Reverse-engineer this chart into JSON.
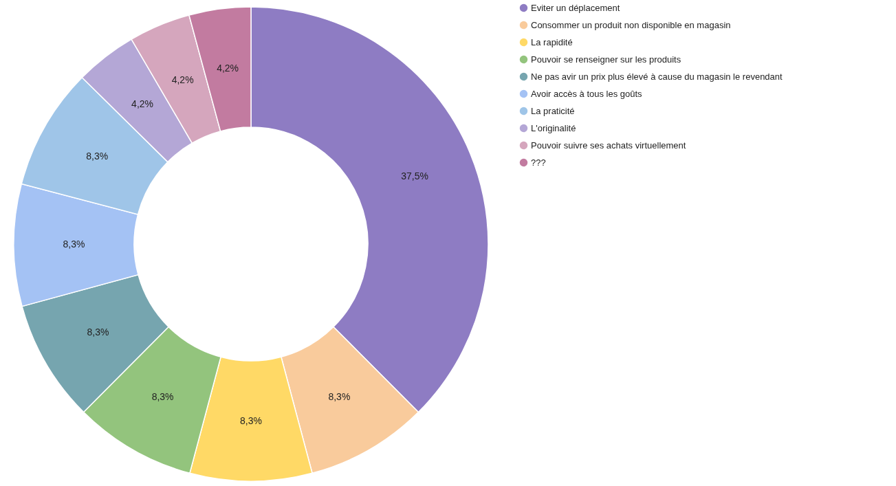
{
  "chart_data": {
    "type": "donut",
    "categories": [
      "Eviter un déplacement",
      "Consommer un produit non disponible en magasin",
      "La rapidité",
      "Pouvoir se renseigner sur les produits",
      "Ne pas avir un prix plus élevé à cause du magasin le revendant",
      "Avoir accès à tous les goûts",
      "La praticité",
      "L'originalité",
      "Pouvoir suivre ses achats virtuellement",
      "???"
    ],
    "values": [
      37.5,
      8.3,
      8.3,
      8.3,
      8.3,
      8.3,
      8.3,
      4.2,
      4.2,
      4.2
    ],
    "value_labels": [
      "37,5%",
      "8,3%",
      "8,3%",
      "8,3%",
      "8,3%",
      "8,3%",
      "8,3%",
      "4,2%",
      "4,2%",
      "4,2%"
    ],
    "colors": [
      "#8e7cc3",
      "#f9cb9c",
      "#ffd966",
      "#93c47d",
      "#76a5af",
      "#a4c2f4",
      "#9fc5e8",
      "#b4a7d6",
      "#d5a6bd",
      "#c27ba0"
    ],
    "legend": "right"
  }
}
